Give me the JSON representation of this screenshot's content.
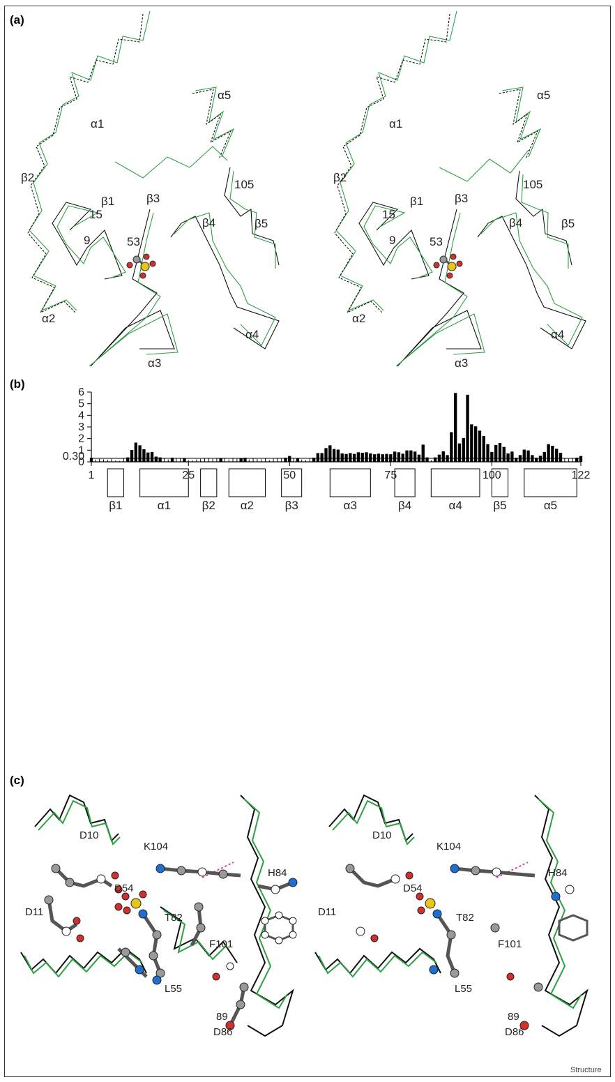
{
  "figure": {
    "credit": "Structure",
    "panel_a": {
      "label": "(a)",
      "labels": [
        "α1",
        "α2",
        "α3",
        "α4",
        "α5",
        "β1",
        "β2",
        "β3",
        "β4",
        "β5",
        "9",
        "15",
        "53",
        "105"
      ]
    },
    "panel_c": {
      "label": "(c)",
      "labels": [
        "D10",
        "D11",
        "D54",
        "L55",
        "T82",
        "H84",
        "D86",
        "89",
        "F101",
        "K104"
      ]
    }
  },
  "chart_data": {
    "type": "bar",
    "label": "(b)",
    "xlim": [
      1,
      122
    ],
    "ylim": [
      0,
      6
    ],
    "x_ticks": [
      1,
      25,
      50,
      75,
      100,
      122
    ],
    "y_ticks": [
      0,
      1,
      2,
      3,
      4,
      5,
      6
    ],
    "threshold": 0.3,
    "threshold_label": "0.30",
    "values": [
      0.35,
      0.2,
      0.25,
      0.22,
      0.18,
      0.25,
      0.12,
      0.08,
      0.3,
      0.38,
      1.02,
      1.65,
      1.42,
      1.08,
      0.8,
      0.85,
      0.45,
      0.38,
      0.3,
      0.2,
      0.35,
      0.3,
      0.28,
      0.32,
      0.15,
      0.12,
      0.2,
      0.25,
      0.3,
      0.3,
      0.25,
      0.3,
      0.32,
      0.28,
      0.2,
      0.3,
      0.25,
      0.32,
      0.35,
      0.2,
      0.28,
      0.25,
      0.22,
      0.3,
      0.15,
      0.25,
      0.3,
      0.3,
      0.35,
      0.5,
      0.3,
      0.32,
      0.2,
      0.15,
      0.25,
      0.35,
      0.75,
      0.75,
      1.18,
      1.42,
      1.1,
      1.05,
      0.72,
      0.68,
      0.75,
      0.68,
      0.82,
      0.78,
      0.82,
      0.72,
      0.65,
      0.7,
      0.65,
      0.68,
      0.65,
      0.88,
      0.82,
      0.7,
      0.98,
      0.98,
      0.88,
      0.62,
      1.48,
      0.38,
      0.15,
      0.38,
      0.62,
      0.9,
      0.58,
      2.55,
      5.92,
      1.58,
      2.05,
      5.77,
      3.22,
      3.05,
      2.68,
      2.22,
      1.52,
      0.85,
      1.45,
      1.62,
      1.28,
      0.72,
      0.88,
      0.35,
      0.58,
      1.05,
      0.98,
      0.58,
      0.35,
      0.52,
      0.85,
      1.52,
      1.38,
      1.12,
      0.78,
      0.3,
      0.25,
      0.3,
      0.35,
      0.5
    ],
    "secondary_structure": [
      {
        "name": "β1",
        "start": 5,
        "end": 9
      },
      {
        "name": "α1",
        "start": 13,
        "end": 25
      },
      {
        "name": "β2",
        "start": 28,
        "end": 32
      },
      {
        "name": "α2",
        "start": 35,
        "end": 44
      },
      {
        "name": "β3",
        "start": 48,
        "end": 53
      },
      {
        "name": "α3",
        "start": 60,
        "end": 70
      },
      {
        "name": "β4",
        "start": 76,
        "end": 81
      },
      {
        "name": "α4",
        "start": 85,
        "end": 97
      },
      {
        "name": "β5",
        "start": 100,
        "end": 104
      },
      {
        "name": "α5",
        "start": 108,
        "end": 121
      }
    ]
  }
}
